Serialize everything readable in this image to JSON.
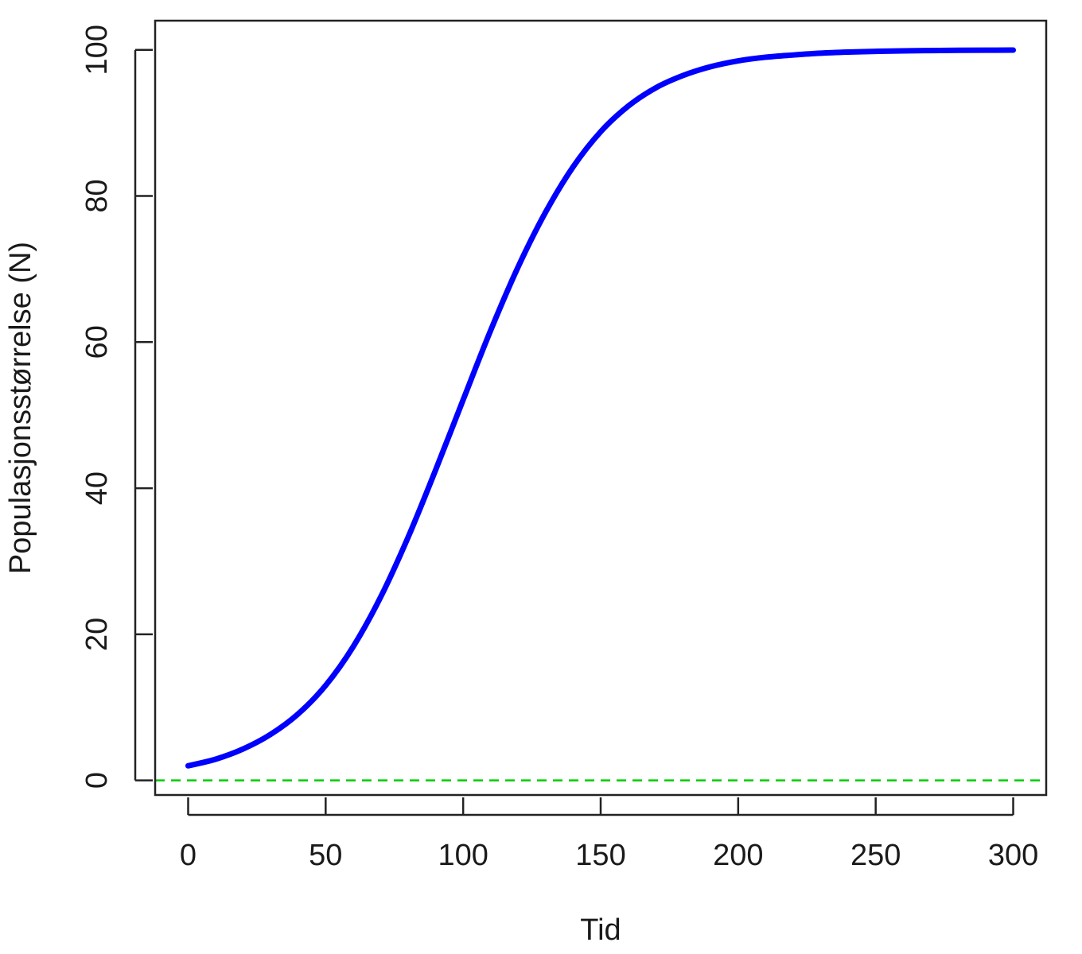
{
  "chart_data": {
    "type": "line",
    "title": "",
    "xlabel": "Tid",
    "ylabel": "Populasjonsstørrelse (N)",
    "xlim": [
      -12,
      312
    ],
    "ylim": [
      -2,
      104
    ],
    "xticks": [
      0,
      50,
      100,
      150,
      200,
      250,
      300
    ],
    "yticks": [
      0,
      20,
      40,
      60,
      80,
      100
    ],
    "grid": false,
    "series": [
      {
        "color": "#0000ff",
        "x": [
          0,
          10,
          20,
          30,
          40,
          50,
          60,
          70,
          80,
          90,
          100,
          110,
          120,
          130,
          140,
          150,
          160,
          170,
          180,
          190,
          200,
          210,
          220,
          230,
          240,
          250,
          260,
          270,
          280,
          290,
          300
        ],
        "y": [
          2.0,
          2.9,
          4.3,
          6.3,
          9.1,
          13.0,
          18.3,
          25.1,
          33.3,
          42.5,
          52.1,
          61.6,
          70.3,
          77.8,
          84.0,
          88.8,
          92.3,
          94.8,
          96.5,
          97.7,
          98.5,
          99.0,
          99.3,
          99.55,
          99.7,
          99.8,
          99.87,
          99.91,
          99.94,
          99.96,
          99.97
        ]
      }
    ],
    "hlines": [
      {
        "y": 0,
        "color": "#00cc00",
        "style": "dashed"
      }
    ]
  }
}
